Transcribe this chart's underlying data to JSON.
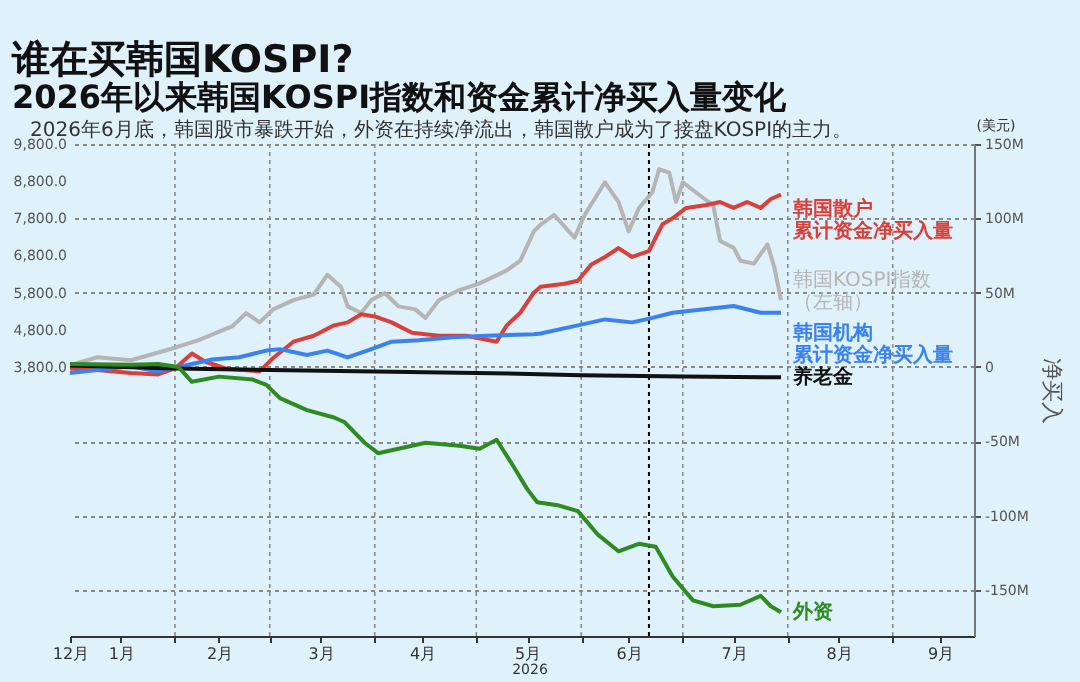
{
  "chart_data": {
    "type": "line",
    "title": "谁在买韩国KOSPI?",
    "subtitle": "2026年以来韩国KOSPI指数和资金累计净买入量变化",
    "annotations": [
      "2026年6月底，韩国股市暴跌开始，外资在持续净流出，韩国散户成为了接盘KOSPI的主力。",
      "(美元)",
      "2026"
    ],
    "y2label": "净买入",
    "xlim": [
      "2026-01-01",
      "2026-09-25"
    ],
    "xticks": [
      {
        "value": "2026-01-01",
        "label": "12月"
      },
      {
        "value": "2026-01-16",
        "label": "1月"
      },
      {
        "value": "2026-02-01",
        "label": null
      },
      {
        "value": "2026-02-14",
        "label": "2月"
      },
      {
        "value": "2026-03-01",
        "label": null
      },
      {
        "value": "2026-03-16",
        "label": "3月"
      },
      {
        "value": "2026-04-01",
        "label": null
      },
      {
        "value": "2026-04-15",
        "label": "4月"
      },
      {
        "value": "2026-05-01",
        "label": null
      },
      {
        "value": "2026-05-16",
        "label": "5月"
      },
      {
        "value": "2026-06-01",
        "label": null
      },
      {
        "value": "2026-06-15",
        "label": "6月"
      },
      {
        "value": "2026-07-01",
        "label": null
      },
      {
        "value": "2026-07-16",
        "label": "7月"
      },
      {
        "value": "2026-08-01",
        "label": null
      },
      {
        "value": "2026-08-16",
        "label": "8月"
      },
      {
        "value": "2026-09-01",
        "label": null
      },
      {
        "value": "2026-09-15",
        "label": "9月"
      }
    ],
    "ylim": [
      -3440,
      9800
    ],
    "yticks": [
      {
        "value": 3800,
        "label": "3,800.0"
      },
      {
        "value": 4800,
        "label": "4,800.0"
      },
      {
        "value": 5800,
        "label": "5,800.0"
      },
      {
        "value": 6800,
        "label": "6,800.0"
      },
      {
        "value": 7800,
        "label": "7,800.0"
      },
      {
        "value": 8800,
        "label": "8,800.0"
      },
      {
        "value": 9800,
        "label": "9,800.0"
      }
    ],
    "y2lim": [
      -181,
      150
    ],
    "y2ticks": [
      {
        "value": -150,
        "label": "-150M"
      },
      {
        "value": -100,
        "label": "-100M"
      },
      {
        "value": -50,
        "label": "-50M"
      },
      0,
      {
        "value": 50,
        "label": "50M"
      },
      {
        "value": 100,
        "label": "100M"
      },
      {
        "value": 150,
        "label": "150M"
      }
    ],
    "grid": true,
    "ref_lines": [
      {
        "axis": "x",
        "value": "2026-06-21",
        "color": "#000000",
        "line_style": "dotted"
      }
    ],
    "series": [
      {
        "name": "韩国KOSPI指数（左轴）",
        "color": "#b5b5b5",
        "axis": "y",
        "x": [
          "2026-01-01",
          "2026-01-09",
          "2026-01-19",
          "2026-01-31",
          "2026-02-08",
          "2026-02-18",
          "2026-02-22",
          "2026-02-26",
          "2026-03-02",
          "2026-03-08",
          "2026-03-14",
          "2026-03-18",
          "2026-03-22",
          "2026-03-24",
          "2026-03-28",
          "2026-03-31",
          "2026-04-04",
          "2026-04-08",
          "2026-04-13",
          "2026-04-16",
          "2026-04-20",
          "2026-04-26",
          "2026-05-02",
          "2026-05-10",
          "2026-05-14",
          "2026-05-18",
          "2026-05-20",
          "2026-05-24",
          "2026-05-30",
          "2026-06-02",
          "2026-06-08",
          "2026-06-12",
          "2026-06-15",
          "2026-06-18",
          "2026-06-22",
          "2026-06-24",
          "2026-06-27",
          "2026-06-29",
          "2026-07-01",
          "2026-07-06",
          "2026-07-10",
          "2026-07-12",
          "2026-07-16",
          "2026-07-18",
          "2026-07-22",
          "2026-07-26",
          "2026-07-28",
          "2026-07-30"
        ],
        "values": [
          3850,
          4060,
          3980,
          4290,
          4520,
          4900,
          5250,
          5000,
          5350,
          5600,
          5750,
          6280,
          5960,
          5430,
          5250,
          5600,
          5790,
          5430,
          5350,
          5120,
          5600,
          5870,
          6050,
          6400,
          6660,
          7450,
          7630,
          7890,
          7280,
          7890,
          8770,
          8240,
          7450,
          8070,
          8500,
          9120,
          9030,
          8240,
          8770,
          8420,
          8150,
          7190,
          7010,
          6660,
          6580,
          7100,
          6490,
          5600
        ]
      },
      {
        "name": "韩国散户累计资金净买入量",
        "color": "#d9403a",
        "axis": "y2",
        "x": [
          "2026-01-01",
          "2026-01-09",
          "2026-01-19",
          "2026-01-27",
          "2026-02-01",
          "2026-02-06",
          "2026-02-10",
          "2026-02-16",
          "2026-02-26",
          "2026-03-02",
          "2026-03-08",
          "2026-03-14",
          "2026-03-20",
          "2026-03-24",
          "2026-03-28",
          "2026-04-01",
          "2026-04-06",
          "2026-04-12",
          "2026-04-20",
          "2026-04-28",
          "2026-05-07",
          "2026-05-10",
          "2026-05-14",
          "2026-05-18",
          "2026-05-20",
          "2026-05-27",
          "2026-05-31",
          "2026-06-04",
          "2026-06-08",
          "2026-06-12",
          "2026-06-16",
          "2026-06-21",
          "2026-06-25",
          "2026-06-28",
          "2026-07-02",
          "2026-07-08",
          "2026-07-12",
          "2026-07-16",
          "2026-07-20",
          "2026-07-24",
          "2026-07-27",
          "2026-07-30"
        ],
        "values": [
          -1,
          -2,
          -4,
          -5,
          -1,
          9,
          3.5,
          -1,
          -3,
          6,
          17,
          21,
          28,
          30,
          35.5,
          34,
          30,
          23,
          21,
          21,
          17,
          28,
          36.5,
          50,
          54,
          56,
          58,
          69,
          74,
          80,
          74,
          78,
          96,
          100,
          107,
          109,
          111,
          107,
          111,
          107,
          113,
          116
        ]
      },
      {
        "name": "韩国机构累计资金净买入量",
        "color": "#3b82f0",
        "axis": "y2",
        "x": [
          "2026-01-01",
          "2026-01-09",
          "2026-01-19",
          "2026-01-27",
          "2026-02-04",
          "2026-02-12",
          "2026-02-20",
          "2026-02-28",
          "2026-03-04",
          "2026-03-12",
          "2026-03-18",
          "2026-03-24",
          "2026-03-31",
          "2026-04-06",
          "2026-04-14",
          "2026-04-24",
          "2026-05-04",
          "2026-05-18",
          "2026-05-20",
          "2026-05-31",
          "2026-06-08",
          "2026-06-16",
          "2026-06-22",
          "2026-06-28",
          "2026-07-06",
          "2026-07-16",
          "2026-07-24",
          "2026-07-30"
        ],
        "values": [
          -4,
          -2,
          0.5,
          -3,
          1,
          5,
          6.5,
          11,
          12,
          8,
          11,
          6.5,
          12,
          17,
          18,
          20,
          21,
          22,
          22.5,
          28,
          32,
          30,
          33,
          36.5,
          38.5,
          41,
          36.5,
          36.5
        ]
      },
      {
        "name": "养老金",
        "color": "#111111",
        "axis": "y2",
        "x": [
          "2026-01-01",
          "2026-02-01",
          "2026-03-01",
          "2026-04-01",
          "2026-05-01",
          "2026-06-01",
          "2026-07-01",
          "2026-07-30"
        ],
        "values": [
          1,
          -1,
          -2,
          -3,
          -4,
          -5.5,
          -6.5,
          -7
        ]
      },
      {
        "name": "外资",
        "color": "#2e8b22",
        "axis": "y2",
        "x": [
          "2026-01-01",
          "2026-01-19",
          "2026-01-27",
          "2026-02-02",
          "2026-02-06",
          "2026-02-14",
          "2026-02-24",
          "2026-02-28",
          "2026-03-04",
          "2026-03-12",
          "2026-03-20",
          "2026-03-23",
          "2026-03-29",
          "2026-04-02",
          "2026-04-08",
          "2026-04-16",
          "2026-04-26",
          "2026-05-02",
          "2026-05-07",
          "2026-05-12",
          "2026-05-16",
          "2026-05-19",
          "2026-05-25",
          "2026-05-31",
          "2026-06-06",
          "2026-06-12",
          "2026-06-18",
          "2026-06-23",
          "2026-06-28",
          "2026-07-04",
          "2026-07-10",
          "2026-07-18",
          "2026-07-24",
          "2026-07-27",
          "2026-07-30"
        ],
        "values": [
          2,
          1.5,
          2,
          0,
          -10,
          -6.5,
          -8.5,
          -12,
          -21,
          -29,
          -34,
          -37,
          -51,
          -58,
          -55,
          -51,
          -53,
          -55,
          -49,
          -67,
          -82,
          -91,
          -93,
          -97,
          -113,
          -124,
          -119,
          -121,
          -141,
          -157,
          -161,
          -160,
          -154,
          -161,
          -165
        ]
      }
    ]
  }
}
